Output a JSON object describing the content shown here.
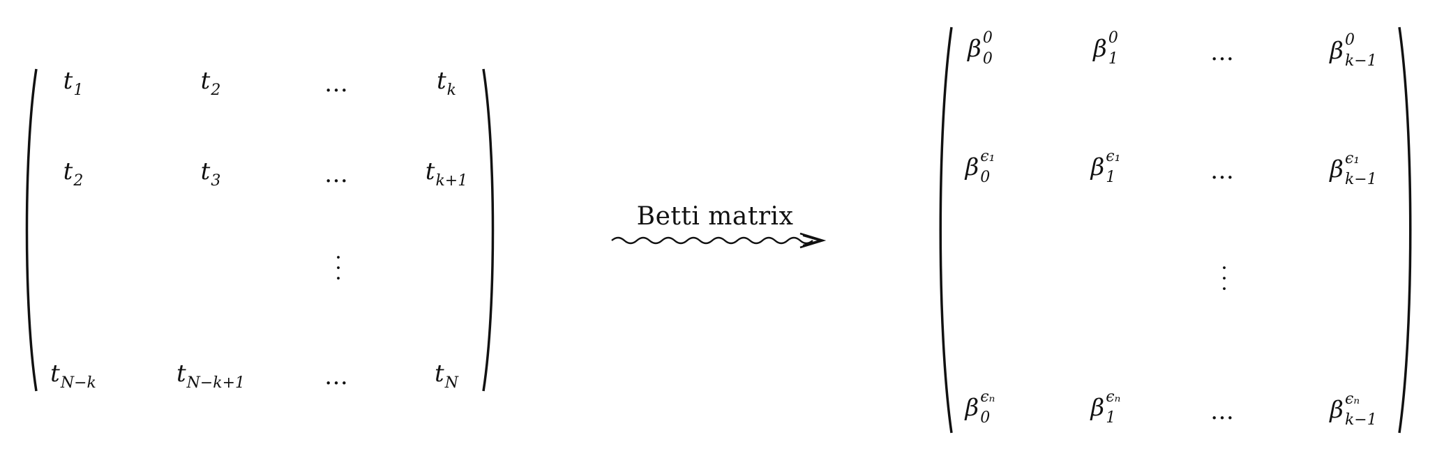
{
  "left_matrix": {
    "rows": [
      [
        {
          "base": "t",
          "sub": "1"
        },
        {
          "base": "t",
          "sub": "2"
        },
        {
          "text": "…"
        },
        {
          "base": "t",
          "sub": "k"
        }
      ],
      [
        {
          "base": "t",
          "sub": "2"
        },
        {
          "base": "t",
          "sub": "3"
        },
        {
          "text": "…"
        },
        {
          "base": "t",
          "sub": "k+1"
        }
      ],
      [
        {},
        {},
        {
          "vdots": true
        },
        {}
      ],
      [
        {
          "base": "t",
          "sub": "N−k"
        },
        {
          "base": "t",
          "sub": "N−k+1"
        },
        {
          "text": "…"
        },
        {
          "base": "t",
          "sub": "N"
        }
      ]
    ]
  },
  "arrow": {
    "label": "Betti matrix"
  },
  "right_matrix": {
    "rows": [
      [
        {
          "base": "β",
          "sub": "0",
          "sup": "0"
        },
        {
          "base": "β",
          "sub": "1",
          "sup": "0"
        },
        {
          "text": "…"
        },
        {
          "base": "β",
          "sub": "k−1",
          "sup": "0"
        }
      ],
      [
        {
          "base": "β",
          "sub": "0",
          "sup": "ϵ₁"
        },
        {
          "base": "β",
          "sub": "1",
          "sup": "ϵ₁"
        },
        {
          "text": "…"
        },
        {
          "base": "β",
          "sub": "k−1",
          "sup": "ϵ₁"
        }
      ],
      [
        {},
        {},
        {
          "vdots": true
        },
        {}
      ],
      [
        {
          "base": "β",
          "sub": "0",
          "sup": "ϵₙ"
        },
        {
          "base": "β",
          "sub": "1",
          "sup": "ϵₙ"
        },
        {
          "text": "…"
        },
        {
          "base": "β",
          "sub": "k−1",
          "sup": "ϵₙ"
        }
      ]
    ]
  }
}
